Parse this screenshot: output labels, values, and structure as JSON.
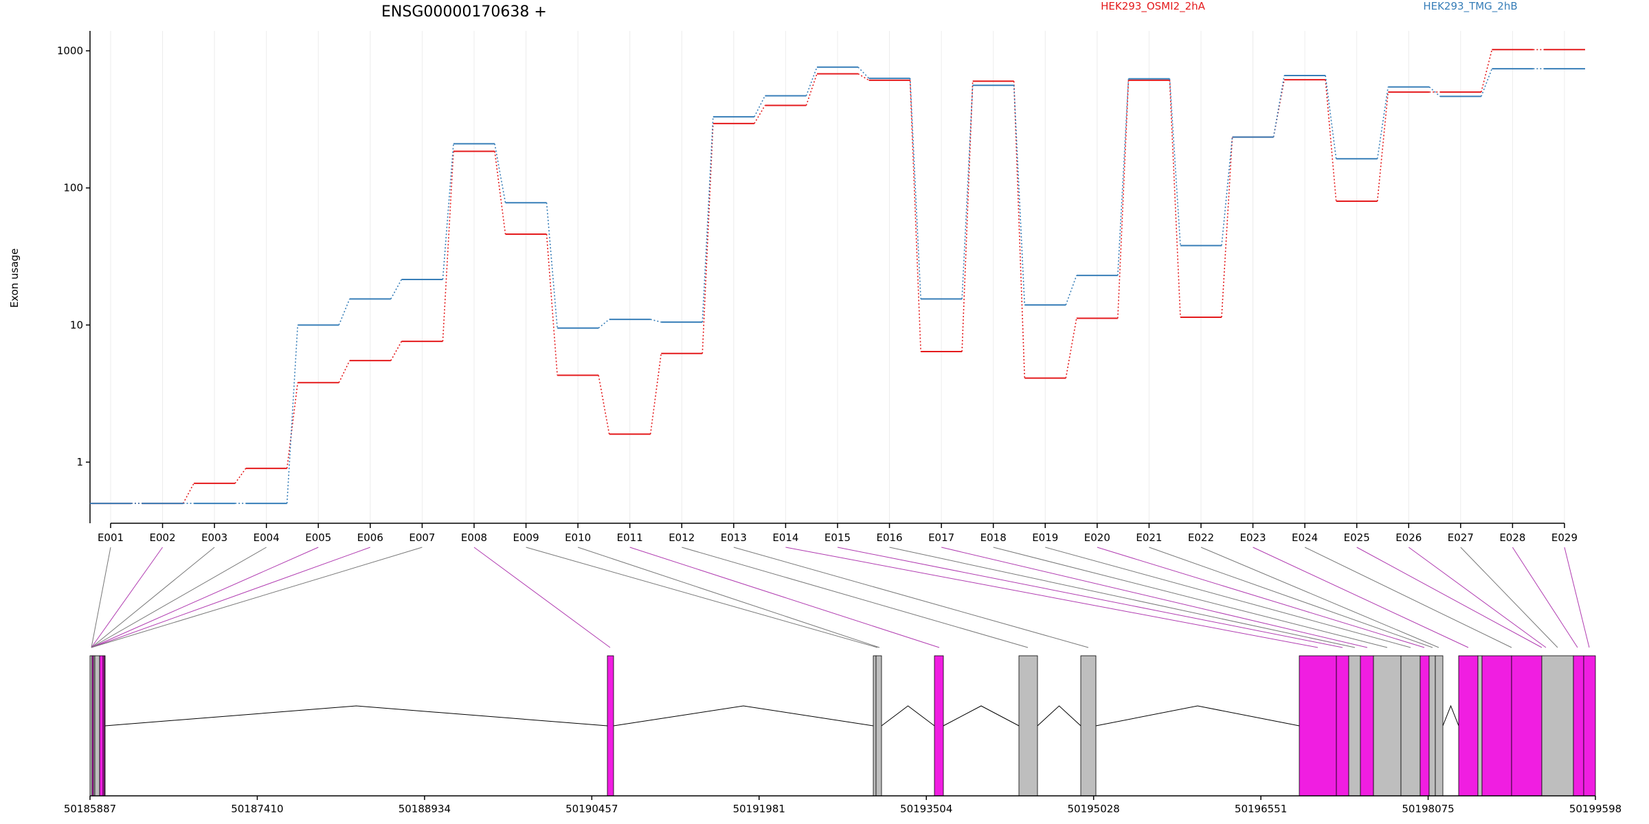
{
  "chart_data": {
    "type": "line",
    "title": "ENSG00000170638 +",
    "ylabel": "Exon usage",
    "y_scale": "log",
    "y_ticks": [
      1,
      10,
      100,
      1000
    ],
    "y_tick_labels": [
      "1",
      "10",
      "100",
      "1000"
    ],
    "categories": [
      "E001",
      "E002",
      "E003",
      "E004",
      "E005",
      "E006",
      "E007",
      "E008",
      "E009",
      "E010",
      "E011",
      "E012",
      "E013",
      "E014",
      "E015",
      "E016",
      "E017",
      "E018",
      "E019",
      "E020",
      "E021",
      "E022",
      "E023",
      "E024",
      "E025",
      "E026",
      "E027",
      "E028",
      "E029"
    ],
    "series": [
      {
        "name": "HEK293_OSMI2_2hA",
        "color": "#e41a1c",
        "values": [
          0.5,
          0.5,
          0.7,
          0.9,
          3.8,
          5.5,
          7.6,
          185,
          46,
          4.3,
          1.6,
          6.2,
          295,
          400,
          680,
          610,
          6.4,
          600,
          4.1,
          11.2,
          610,
          11.4,
          235,
          615,
          80,
          500,
          500,
          1020,
          1020
        ]
      },
      {
        "name": "HEK293_TMG_2hB",
        "color": "#377eb8",
        "values": [
          0.5,
          0.5,
          0.5,
          0.5,
          10,
          15.5,
          21.5,
          210,
          78,
          9.5,
          11,
          10.5,
          330,
          470,
          760,
          630,
          15.5,
          560,
          14,
          23,
          625,
          38,
          235,
          660,
          163,
          545,
          465,
          740,
          740
        ]
      }
    ],
    "legend": [
      "HEK293_OSMI2_2hA",
      "HEK293_TMG_2hB"
    ],
    "legend_position": "top-right",
    "genomic_axis": {
      "tick_labels": [
        "50185887",
        "50187410",
        "50188934",
        "50190457",
        "50191981",
        "50193504",
        "50195028",
        "50196551",
        "50198075",
        "50199598"
      ]
    },
    "exon_colors": [
      "#bebebe",
      "#f01ee1",
      "#bebebe",
      "#bebebe",
      "#f01ee1",
      "#f01ee1",
      "#bebebe",
      "#f01ee1",
      "#bebebe",
      "#bebebe",
      "#f01ee1",
      "#bebebe",
      "#bebebe",
      "#f01ee1",
      "#f01ee1",
      "#bebebe",
      "#f01ee1",
      "#bebebe",
      "#bebebe",
      "#f01ee1",
      "#bebebe",
      "#bebebe",
      "#f01ee1",
      "#bebebe",
      "#f01ee1",
      "#f01ee1",
      "#bebebe",
      "#f01ee1",
      "#f01ee1"
    ],
    "colors": {
      "highlight_exon": "#f01ee1",
      "normal_exon": "#bebebe"
    }
  }
}
